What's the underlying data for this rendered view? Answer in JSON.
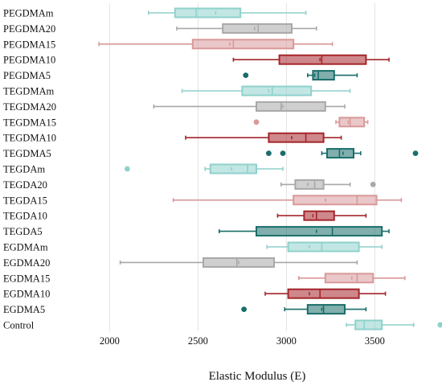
{
  "chart_data": {
    "type": "box",
    "xlabel": "Elastic Modulus (E)",
    "ylabel": "",
    "title": "",
    "xlim": [
      1780,
      3880
    ],
    "xticks": [
      2000,
      2500,
      3000,
      3500
    ],
    "grid": true,
    "orientation": "horizontal",
    "colors": {
      "light_teal": "#8fd1cc",
      "gray": "#a8a8a8",
      "light_pink": "#d9999a",
      "dark_red": "#a5262c",
      "dark_teal": "#196e6a"
    },
    "categories": [
      "PEGDMAm",
      "PEGDMA20",
      "PEGDMA15",
      "PEGDMA10",
      "PEGDMA5",
      "TEGDMAm",
      "TEGDMA20",
      "TEGDMA15",
      "TEGDMA10",
      "TEGDMA5",
      "TEGDAm",
      "TEGDA20",
      "TEGDA15",
      "TEGDA10",
      "TEGDA5",
      "EGDMAm",
      "EGDMA20",
      "EGDMA15",
      "EGDMA10",
      "EGDMA5",
      "Control"
    ],
    "boxes": [
      {
        "label": "PEGDMAm",
        "color": "light_teal",
        "whisker_low": 2220,
        "q1": 2370,
        "median": 2490,
        "mean": 2600,
        "q3": 2740,
        "whisker_high": 3110,
        "outliers": []
      },
      {
        "label": "PEGDMA20",
        "color": "gray",
        "whisker_low": 2380,
        "q1": 2640,
        "median": 2840,
        "mean": 2820,
        "q3": 3030,
        "whisker_high": 3170,
        "outliers": []
      },
      {
        "label": "PEGDMA15",
        "color": "light_pink",
        "whisker_low": 1940,
        "q1": 2470,
        "median": 2700,
        "mean": 2680,
        "q3": 3040,
        "whisker_high": 3260,
        "outliers": []
      },
      {
        "label": "PEGDMA10",
        "color": "dark_red",
        "whisker_low": 2700,
        "q1": 2960,
        "median": 3200,
        "mean": 3190,
        "q3": 3450,
        "whisker_high": 3580,
        "outliers": []
      },
      {
        "label": "PEGDMA5",
        "color": "dark_teal",
        "whisker_low": 3120,
        "q1": 3150,
        "median": 3180,
        "mean": 3160,
        "q3": 3270,
        "whisker_high": 3400,
        "outliers": [
          2770
        ]
      },
      {
        "label": "TEGDMAm",
        "color": "light_teal",
        "whisker_low": 2410,
        "q1": 2750,
        "median": 2920,
        "mean": 2900,
        "q3": 3140,
        "whisker_high": 3360,
        "outliers": []
      },
      {
        "label": "TEGDMA20",
        "color": "gray",
        "whisker_low": 2250,
        "q1": 2830,
        "median": 2970,
        "mean": 2980,
        "q3": 3220,
        "whisker_high": 3330,
        "outliers": []
      },
      {
        "label": "TEGDMA15",
        "color": "light_pink",
        "whisker_low": 3280,
        "q1": 3300,
        "median": 3360,
        "mean": 3350,
        "q3": 3440,
        "whisker_high": 3460,
        "outliers": [
          2830
        ]
      },
      {
        "label": "TEGDMA10",
        "color": "dark_red",
        "whisker_low": 2430,
        "q1": 2900,
        "median": 3110,
        "mean": 3030,
        "q3": 3210,
        "whisker_high": 3310,
        "outliers": []
      },
      {
        "label": "TEGDMA5",
        "color": "dark_teal",
        "whisker_low": 3200,
        "q1": 3230,
        "median": 3300,
        "mean": 3320,
        "q3": 3380,
        "whisker_high": 3420,
        "outliers": [
          2900,
          2980,
          3730
        ]
      },
      {
        "label": "TEGDAm",
        "color": "light_teal",
        "whisker_low": 2540,
        "q1": 2570,
        "median": 2780,
        "mean": 2690,
        "q3": 2830,
        "whisker_high": 2980,
        "outliers": [
          2100
        ]
      },
      {
        "label": "TEGDA20",
        "color": "gray",
        "whisker_low": 2970,
        "q1": 3050,
        "median": 3160,
        "mean": 3120,
        "q3": 3210,
        "whisker_high": 3360,
        "outliers": [
          3490
        ]
      },
      {
        "label": "TEGDA15",
        "color": "light_pink",
        "whisker_low": 2360,
        "q1": 3040,
        "median": 3400,
        "mean": 3220,
        "q3": 3510,
        "whisker_high": 3650,
        "outliers": []
      },
      {
        "label": "TEGDA10",
        "color": "dark_red",
        "whisker_low": 2950,
        "q1": 3100,
        "median": 3170,
        "mean": 3150,
        "q3": 3270,
        "whisker_high": 3450,
        "outliers": []
      },
      {
        "label": "TEGDA5",
        "color": "dark_teal",
        "whisker_low": 2620,
        "q1": 2830,
        "median": 3260,
        "mean": 3170,
        "q3": 3540,
        "whisker_high": 3580,
        "outliers": []
      },
      {
        "label": "EGDMAm",
        "color": "light_teal",
        "whisker_low": 2890,
        "q1": 3010,
        "median": 3200,
        "mean": 3130,
        "q3": 3410,
        "whisker_high": 3540,
        "outliers": []
      },
      {
        "label": "EGDMA20",
        "color": "gray",
        "whisker_low": 2060,
        "q1": 2530,
        "median": 2720,
        "mean": 2730,
        "q3": 2930,
        "whisker_high": 3400,
        "outliers": []
      },
      {
        "label": "EGDMA15",
        "color": "light_pink",
        "whisker_low": 3070,
        "q1": 3220,
        "median": 3400,
        "mean": 3370,
        "q3": 3490,
        "whisker_high": 3670,
        "outliers": []
      },
      {
        "label": "EGDMA10",
        "color": "dark_red",
        "whisker_low": 2880,
        "q1": 3010,
        "median": 3190,
        "mean": 3130,
        "q3": 3410,
        "whisker_high": 3560,
        "outliers": []
      },
      {
        "label": "EGDMA5",
        "color": "dark_teal",
        "whisker_low": 2990,
        "q1": 3120,
        "median": 3210,
        "mean": 3200,
        "q3": 3330,
        "whisker_high": 3450,
        "outliers": [
          2760
        ]
      },
      {
        "label": "Control",
        "color": "light_teal",
        "whisker_low": 3340,
        "q1": 3390,
        "median": 3440,
        "mean": 3440,
        "q3": 3540,
        "whisker_high": 3720,
        "outliers": [
          3870
        ]
      }
    ]
  }
}
